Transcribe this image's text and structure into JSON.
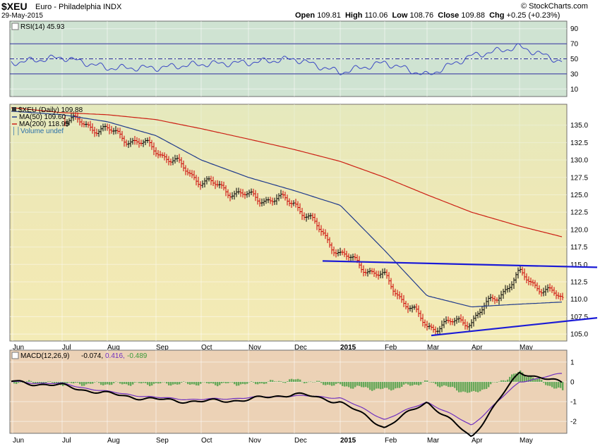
{
  "header": {
    "symbol": "$XEU",
    "name": "Euro - Philadelphia INDX",
    "date": "29-May-2015",
    "source": "© StockCharts.com",
    "quote": {
      "open_label": "Open",
      "open": "109.81",
      "high_label": "High",
      "high": "110.06",
      "low_label": "Low",
      "low": "108.76",
      "close_label": "Close",
      "close": "109.88",
      "chg_label": "Chg",
      "chg": "+0.25 (+0.23%)"
    }
  },
  "colors": {
    "price_bg": "#f3ebb6",
    "rsi_bg": "#cfe3d2",
    "macd_bg": "#ecd2b6",
    "up_bar": "#000000",
    "down_bar": "#cc0000",
    "ma50": "#1f3a8c",
    "ma200": "#cc1f14",
    "trendline": "#1b1bd6",
    "rsi_line": "#3b48c4",
    "macd_line": "#000000",
    "signal_line": "#7030c0",
    "histogram": "#3a9a3a"
  },
  "months": [
    "Jun",
    "Jul",
    "Aug",
    "Sep",
    "Oct",
    "Nov",
    "Dec",
    "2015",
    "Feb",
    "Mar",
    "Apr",
    "May"
  ],
  "chart_data": [
    {
      "type": "line",
      "panel": "rsi",
      "legend": "RSI(14) 45.93",
      "ylim": [
        0,
        100
      ],
      "yticks": [
        "90",
        "70",
        "50",
        "30",
        "10"
      ],
      "levels": [
        70,
        50,
        30
      ],
      "series": [
        {
          "name": "RSI(14)",
          "x": [
            "Jun",
            "Jul",
            "Aug",
            "Sep",
            "Oct",
            "Nov",
            "Dec",
            "2015",
            "Feb",
            "Mar",
            "Apr",
            "May",
            "29-May"
          ],
          "values": [
            45,
            52,
            38,
            38,
            43,
            45,
            50,
            32,
            45,
            28,
            54,
            66,
            46
          ]
        }
      ]
    },
    {
      "type": "ohlc",
      "panel": "price",
      "legend": [
        "$XEU (Daily) 109.88",
        "MA(50) 109.60",
        "MA(200) 118.95",
        "Volume undef"
      ],
      "ylim": [
        104,
        138
      ],
      "yticks": [
        "135.0",
        "132.5",
        "130.0",
        "127.5",
        "125.0",
        "122.5",
        "120.0",
        "117.5",
        "115.0",
        "112.5",
        "110.0",
        "107.5",
        "105.0"
      ],
      "x": [
        "Jun",
        "Jul",
        "Aug",
        "Sep",
        "Oct",
        "Nov",
        "Dec",
        "2015",
        "Feb",
        "Mar",
        "Apr",
        "May",
        "29-May"
      ],
      "series": [
        {
          "name": "$XEU (Daily)",
          "values": [
            136.0,
            136.0,
            134.2,
            131.5,
            127.0,
            124.7,
            124.0,
            116.5,
            113.0,
            106.0,
            107.0,
            113.5,
            109.88
          ]
        },
        {
          "name": "MA(50)",
          "values": [
            137.0,
            136.5,
            135.5,
            133.5,
            130.0,
            127.5,
            125.6,
            123.5,
            117.0,
            110.5,
            108.9,
            109.3,
            109.6
          ]
        },
        {
          "name": "MA(200)",
          "values": [
            137.5,
            136.8,
            136.5,
            135.8,
            134.5,
            133.0,
            131.5,
            129.8,
            127.5,
            125.0,
            122.5,
            120.5,
            118.95
          ]
        }
      ],
      "trendlines": [
        {
          "start": [
            "Dec",
            115.5
          ],
          "end": [
            "29-May",
            114.7
          ]
        },
        {
          "start": [
            "Mar",
            104.8
          ],
          "end": [
            "29-May",
            106.8
          ]
        }
      ]
    },
    {
      "type": "line",
      "panel": "macd",
      "legend": [
        "MACD(12,26,9)",
        "-0.074,",
        "0.416,",
        "-0.489"
      ],
      "ylim": [
        -2.6,
        1.6
      ],
      "yticks": [
        "1",
        "0",
        "-1",
        "-2"
      ],
      "x": [
        "Jun",
        "Jul",
        "Aug",
        "Sep",
        "Oct",
        "Nov",
        "Dec",
        "2015",
        "Feb",
        "Mar",
        "Apr",
        "May",
        "29-May"
      ],
      "series": [
        {
          "name": "MACD(12,26,9)",
          "values": [
            0.0,
            -0.2,
            -0.6,
            -0.9,
            -1.0,
            -0.9,
            -0.6,
            -1.0,
            -2.3,
            -1.0,
            -2.8,
            0.5,
            -0.074
          ]
        },
        {
          "name": "Signal",
          "values": [
            0.0,
            -0.1,
            -0.5,
            -0.8,
            -0.9,
            -0.8,
            -0.7,
            -0.8,
            -1.9,
            -1.0,
            -2.2,
            0.0,
            0.416
          ]
        },
        {
          "name": "Histogram",
          "values": [
            0.0,
            -0.1,
            -0.1,
            -0.1,
            -0.1,
            -0.1,
            0.1,
            -0.2,
            -0.4,
            0.0,
            -0.6,
            0.5,
            -0.489
          ]
        }
      ]
    }
  ]
}
